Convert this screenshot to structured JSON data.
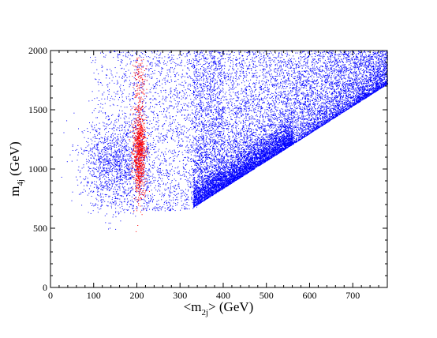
{
  "chart_data": {
    "type": "scatter",
    "title": "",
    "xlabel": {
      "prefix": "<m",
      "sub": "2j",
      "suffix": "> (GeV)"
    },
    "ylabel": {
      "prefix": "m",
      "sub": "4j",
      "suffix": " (GeV)"
    },
    "xlim": [
      0,
      780
    ],
    "ylim": [
      0,
      2000
    ],
    "x_ticks": [
      0,
      100,
      200,
      300,
      400,
      500,
      600,
      700
    ],
    "y_ticks": [
      0,
      500,
      1000,
      1500,
      2000
    ],
    "grid": false,
    "series": [
      {
        "color": "#0000ff",
        "description_points": "dense blue scatter; lower boundary line from (340,700) to (780,1720); upper/left fringe from x~100 to 780",
        "boundary": {
          "x": [
            340,
            780
          ],
          "y": [
            700,
            1720
          ]
        },
        "x_range": [
          90,
          780
        ],
        "y_range": [
          650,
          2000
        ],
        "dense_region": {
          "x": [
            330,
            560
          ],
          "y": [
            700,
            1300
          ]
        }
      },
      {
        "color": "#ff0000",
        "cluster": {
          "x_center": 205,
          "x_spread": 12,
          "y_range": [
            800,
            1950
          ],
          "y_peak": 1150
        }
      }
    ]
  }
}
